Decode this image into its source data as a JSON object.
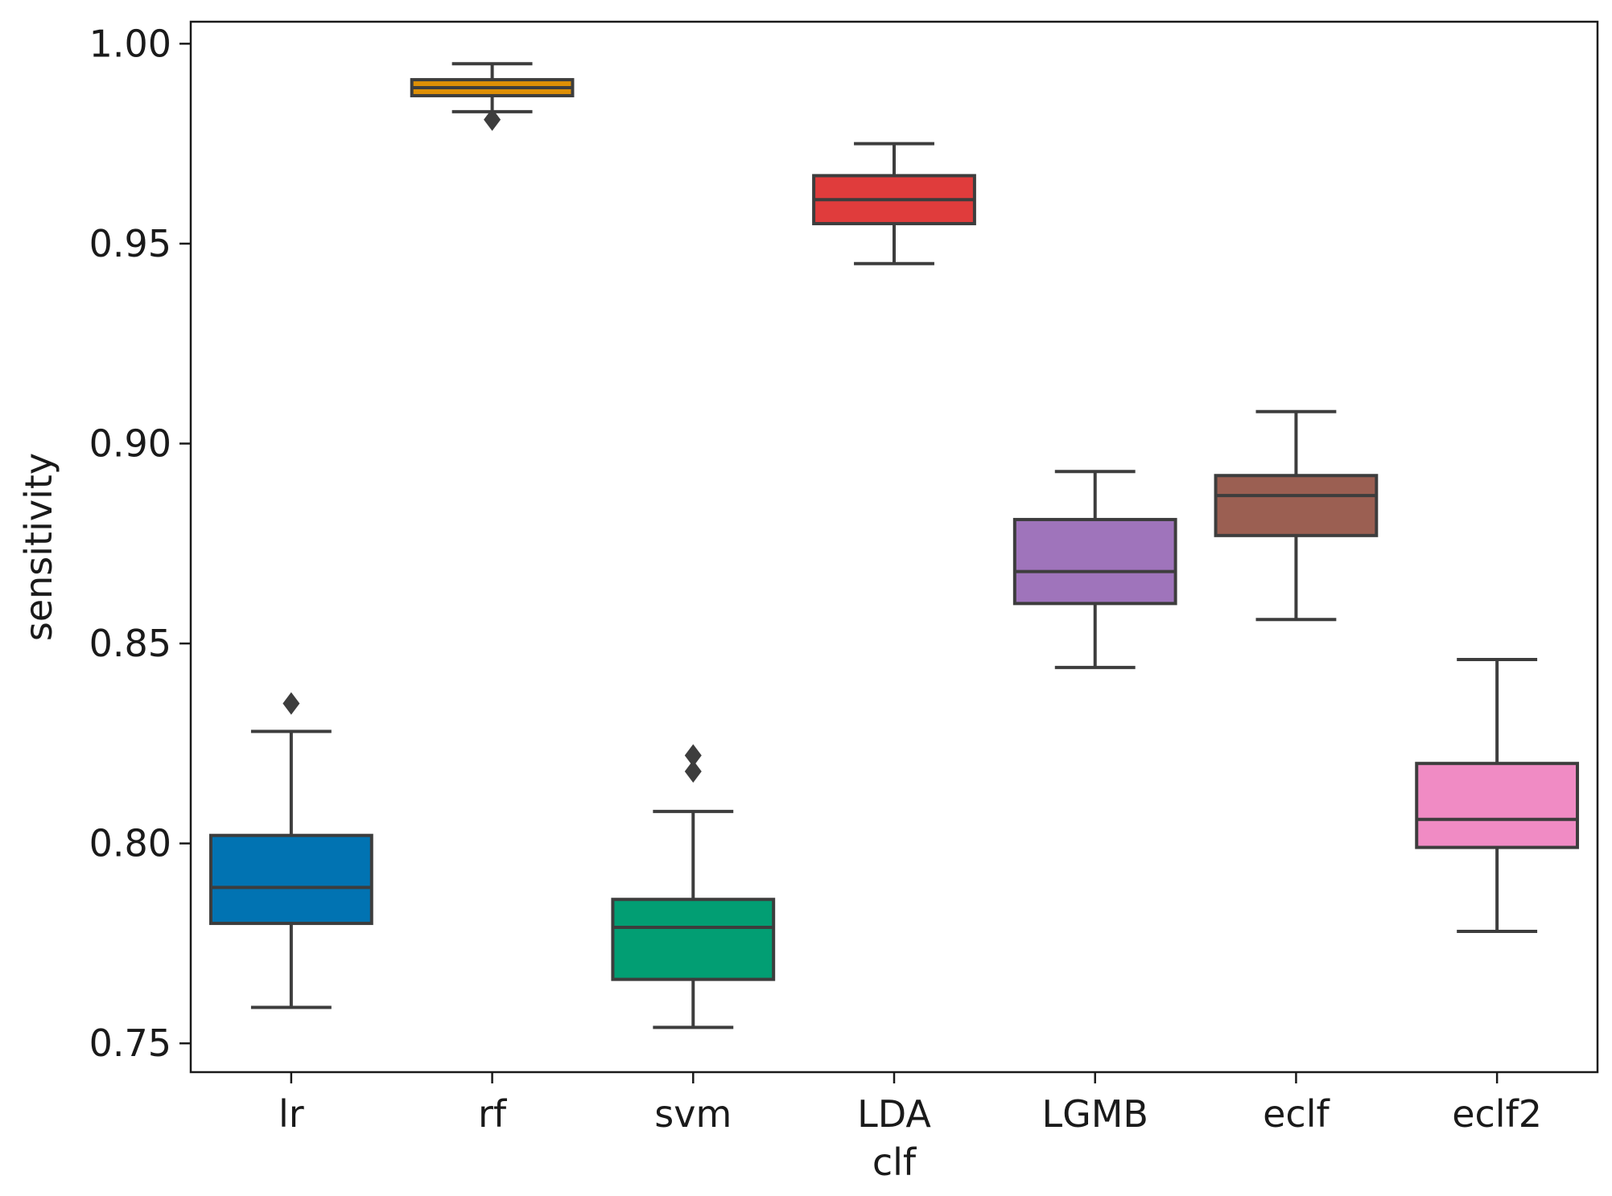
{
  "chart_data": {
    "type": "boxplot",
    "title": "",
    "xlabel": "clf",
    "ylabel": "sensitivity",
    "ylim": [
      0.7428,
      1.0055
    ],
    "yticks": [
      0.75,
      0.8,
      0.85,
      0.9,
      0.95,
      1.0
    ],
    "ytick_labels": [
      "0.75",
      "0.80",
      "0.85",
      "0.90",
      "0.95",
      "1.00"
    ],
    "categories": [
      "lr",
      "rf",
      "svm",
      "LDA",
      "LGMB",
      "eclf",
      "eclf2"
    ],
    "boxes": [
      {
        "name": "lr",
        "color": "#0173b2",
        "whisker_low": 0.759,
        "q1": 0.78,
        "median": 0.789,
        "q3": 0.802,
        "whisker_high": 0.828,
        "outliers": [
          0.835
        ]
      },
      {
        "name": "rf",
        "color": "#de8f05",
        "whisker_low": 0.983,
        "q1": 0.987,
        "median": 0.989,
        "q3": 0.991,
        "whisker_high": 0.995,
        "outliers": [
          0.981
        ]
      },
      {
        "name": "svm",
        "color": "#029e73",
        "whisker_low": 0.754,
        "q1": 0.766,
        "median": 0.779,
        "q3": 0.786,
        "whisker_high": 0.808,
        "outliers": [
          0.818,
          0.822
        ]
      },
      {
        "name": "LDA",
        "color": "#d55e00",
        "whisker_low": 0.945,
        "q1": 0.955,
        "median": 0.961,
        "q3": 0.967,
        "whisker_high": 0.975,
        "outliers": []
      },
      {
        "name": "LGMB",
        "color": "#cc78bc",
        "whisker_low": 0.844,
        "q1": 0.86,
        "median": 0.868,
        "q3": 0.881,
        "whisker_high": 0.893,
        "outliers": []
      },
      {
        "name": "eclf",
        "color": "#ca9161",
        "whisker_low": 0.856,
        "q1": 0.877,
        "median": 0.887,
        "q3": 0.892,
        "whisker_high": 0.908,
        "outliers": []
      },
      {
        "name": "eclf2",
        "color": "#fbafe4",
        "whisker_low": 0.778,
        "q1": 0.799,
        "median": 0.806,
        "q3": 0.82,
        "whisker_high": 0.846,
        "outliers": []
      }
    ],
    "box_colors_rendered": [
      "#0173b2",
      "#de8f05",
      "#029e73",
      "#e03c3c",
      "#9f74bb",
      "#9b5f52",
      "#f08bc4"
    ],
    "edge_color": "#3d3d3d",
    "grid": false,
    "legend": "none"
  }
}
